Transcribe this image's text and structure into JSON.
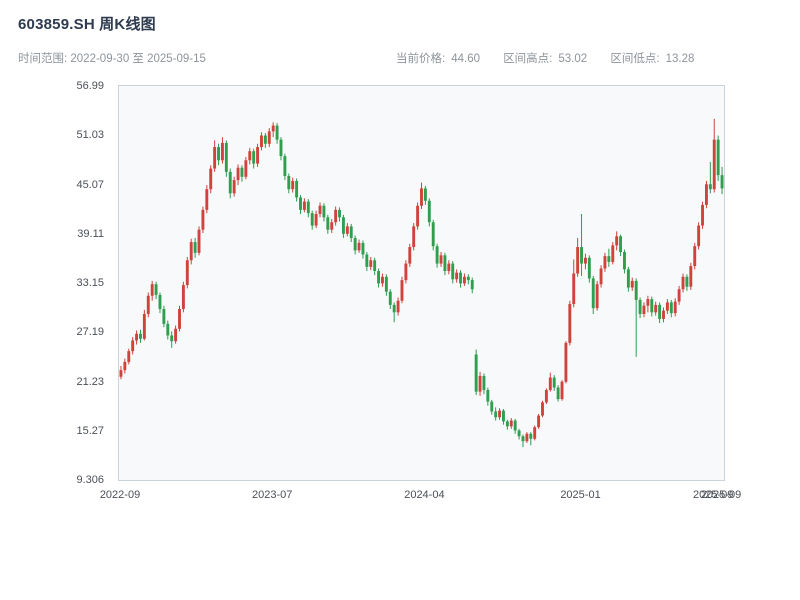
{
  "header": {
    "title": "603859.SH 周K线图",
    "time_range": "时间范围: 2022-09-30 至 2025-09-15",
    "info": {
      "price_label": "当前价格:",
      "price_value": "44.60",
      "high_label": "区间高点:",
      "high_value": "53.02",
      "low_label": "区间低点:",
      "low_value": "13.28"
    }
  },
  "chart_data": {
    "type": "candlestick",
    "symbol": "603859.SH",
    "period": "weekly",
    "title": "603859.SH 周K线图",
    "date_start": "2022-09-30",
    "date_end": "2025-09-15",
    "current_price": 44.6,
    "range_high": 53.02,
    "range_low": 13.28,
    "colors": {
      "up": "#d0433d",
      "down": "#2f9e4f"
    },
    "y_axis": {
      "min": 9.306,
      "max": 56.99,
      "tick_labels": [
        "56.99",
        "51.03",
        "45.07",
        "39.11",
        "33.15",
        "27.19",
        "21.23",
        "15.27",
        "9.306"
      ]
    },
    "x_axis": {
      "ticks": [
        {
          "label": "2022-09",
          "index": 0
        },
        {
          "label": "2023-07",
          "index": 39
        },
        {
          "label": "2024-04",
          "index": 78
        },
        {
          "label": "2025-01",
          "index": 118
        },
        {
          "label": "2025-09",
          "index": 152
        },
        {
          "label": "2025-09",
          "index": 154
        }
      ]
    },
    "candles": [
      [
        21.8,
        23.1,
        21.5,
        22.6
      ],
      [
        22.6,
        24.0,
        22.2,
        23.6
      ],
      [
        23.6,
        25.2,
        23.3,
        24.9
      ],
      [
        24.9,
        26.6,
        24.5,
        26.2
      ],
      [
        26.2,
        27.4,
        25.7,
        27.0
      ],
      [
        27.0,
        27.5,
        25.9,
        26.4
      ],
      [
        26.4,
        29.9,
        26.2,
        29.4
      ],
      [
        29.4,
        32.0,
        29.0,
        31.6
      ],
      [
        31.6,
        33.4,
        31.0,
        33.0
      ],
      [
        33.0,
        33.3,
        31.2,
        31.7
      ],
      [
        31.7,
        32.0,
        29.5,
        30.0
      ],
      [
        30.0,
        30.4,
        27.8,
        28.2
      ],
      [
        28.2,
        28.6,
        26.3,
        26.8
      ],
      [
        26.8,
        27.3,
        25.3,
        26.1
      ],
      [
        26.1,
        28.0,
        25.8,
        27.6
      ],
      [
        27.6,
        30.4,
        27.3,
        30.0
      ],
      [
        30.0,
        33.3,
        29.6,
        32.9
      ],
      [
        32.9,
        36.3,
        32.5,
        35.9
      ],
      [
        35.9,
        38.5,
        35.4,
        38.1
      ],
      [
        38.1,
        38.6,
        36.2,
        36.8
      ],
      [
        36.8,
        40.0,
        36.5,
        39.6
      ],
      [
        39.6,
        42.4,
        39.2,
        42.0
      ],
      [
        42.0,
        45.0,
        41.6,
        44.5
      ],
      [
        44.5,
        47.4,
        44.0,
        47.0
      ],
      [
        47.0,
        50.4,
        46.6,
        49.6
      ],
      [
        49.6,
        50.0,
        47.4,
        48.0
      ],
      [
        48.0,
        50.8,
        47.6,
        50.1
      ],
      [
        50.1,
        50.4,
        46.0,
        46.6
      ],
      [
        46.6,
        47.0,
        43.4,
        44.0
      ],
      [
        44.0,
        46.0,
        43.6,
        45.6
      ],
      [
        45.6,
        47.5,
        45.0,
        47.1
      ],
      [
        47.1,
        47.4,
        45.4,
        46.0
      ],
      [
        46.0,
        48.4,
        45.7,
        48.0
      ],
      [
        48.0,
        49.5,
        47.5,
        49.1
      ],
      [
        49.1,
        49.4,
        47.0,
        47.6
      ],
      [
        47.6,
        50.0,
        47.2,
        49.6
      ],
      [
        49.6,
        51.4,
        49.2,
        51.0
      ],
      [
        51.0,
        51.3,
        49.5,
        50.0
      ],
      [
        50.0,
        51.9,
        49.6,
        51.5
      ],
      [
        51.5,
        52.6,
        50.8,
        52.2
      ],
      [
        52.2,
        52.5,
        50.0,
        50.5
      ],
      [
        50.5,
        50.8,
        48.0,
        48.5
      ],
      [
        48.5,
        48.8,
        45.6,
        46.1
      ],
      [
        46.1,
        46.4,
        44.0,
        44.5
      ],
      [
        44.5,
        45.9,
        44.1,
        45.5
      ],
      [
        45.5,
        45.8,
        43.0,
        43.5
      ],
      [
        43.5,
        43.8,
        41.5,
        42.0
      ],
      [
        42.0,
        43.4,
        41.7,
        43.0
      ],
      [
        43.0,
        43.3,
        41.1,
        41.6
      ],
      [
        41.6,
        41.9,
        39.6,
        40.1
      ],
      [
        40.1,
        41.9,
        39.8,
        41.5
      ],
      [
        41.5,
        42.9,
        41.1,
        42.5
      ],
      [
        42.5,
        42.8,
        40.6,
        41.1
      ],
      [
        41.1,
        41.4,
        39.1,
        39.6
      ],
      [
        39.6,
        40.9,
        39.2,
        40.5
      ],
      [
        40.5,
        42.4,
        40.1,
        42.0
      ],
      [
        42.0,
        42.3,
        40.6,
        41.1
      ],
      [
        41.1,
        41.4,
        38.6,
        39.1
      ],
      [
        39.1,
        40.4,
        38.8,
        40.0
      ],
      [
        40.0,
        40.3,
        38.1,
        38.6
      ],
      [
        38.6,
        38.9,
        36.6,
        37.1
      ],
      [
        37.1,
        38.4,
        36.8,
        38.0
      ],
      [
        38.0,
        38.3,
        36.1,
        36.6
      ],
      [
        36.6,
        36.9,
        34.6,
        35.1
      ],
      [
        35.1,
        36.3,
        34.7,
        35.9
      ],
      [
        35.9,
        36.2,
        34.1,
        34.6
      ],
      [
        34.6,
        34.9,
        32.6,
        33.1
      ],
      [
        33.1,
        34.3,
        32.7,
        33.9
      ],
      [
        33.9,
        34.2,
        31.6,
        32.1
      ],
      [
        32.1,
        32.4,
        30.0,
        30.5
      ],
      [
        30.5,
        30.8,
        28.4,
        29.6
      ],
      [
        29.6,
        31.4,
        29.2,
        31.0
      ],
      [
        31.0,
        33.9,
        30.7,
        33.5
      ],
      [
        33.5,
        35.9,
        33.1,
        35.5
      ],
      [
        35.5,
        37.9,
        35.1,
        37.5
      ],
      [
        37.5,
        40.4,
        37.1,
        40.0
      ],
      [
        40.0,
        42.9,
        39.6,
        42.5
      ],
      [
        42.5,
        45.3,
        42.1,
        44.6
      ],
      [
        44.6,
        44.9,
        42.6,
        43.1
      ],
      [
        43.1,
        43.4,
        40.0,
        40.5
      ],
      [
        40.5,
        40.8,
        37.1,
        37.6
      ],
      [
        37.6,
        37.9,
        35.0,
        35.5
      ],
      [
        35.5,
        36.9,
        35.1,
        36.5
      ],
      [
        36.5,
        36.8,
        34.1,
        34.6
      ],
      [
        34.6,
        35.9,
        34.2,
        35.5
      ],
      [
        35.5,
        35.8,
        33.1,
        33.6
      ],
      [
        33.6,
        34.8,
        33.2,
        34.4
      ],
      [
        34.4,
        34.7,
        32.6,
        33.1
      ],
      [
        33.1,
        34.3,
        32.8,
        33.9
      ],
      [
        33.9,
        34.2,
        33.0,
        33.5
      ],
      [
        33.5,
        33.8,
        31.9,
        32.4
      ],
      [
        24.5,
        25.1,
        19.6,
        20.0
      ],
      [
        20.0,
        22.4,
        19.5,
        21.9
      ],
      [
        21.9,
        22.2,
        19.7,
        20.2
      ],
      [
        20.2,
        20.5,
        18.3,
        18.8
      ],
      [
        18.8,
        19.0,
        17.2,
        17.6
      ],
      [
        17.6,
        18.1,
        16.5,
        16.9
      ],
      [
        16.9,
        18.0,
        16.6,
        17.7
      ],
      [
        17.7,
        17.9,
        16.0,
        16.4
      ],
      [
        16.4,
        16.6,
        15.4,
        15.8
      ],
      [
        15.8,
        16.8,
        15.5,
        16.5
      ],
      [
        16.5,
        16.7,
        14.9,
        15.3
      ],
      [
        15.3,
        15.5,
        14.2,
        14.6
      ],
      [
        14.6,
        14.8,
        13.28,
        14.0
      ],
      [
        14.0,
        15.1,
        13.8,
        14.9
      ],
      [
        14.9,
        15.1,
        13.5,
        14.3
      ],
      [
        14.3,
        15.9,
        14.1,
        15.7
      ],
      [
        15.7,
        17.3,
        15.5,
        17.1
      ],
      [
        17.1,
        18.9,
        16.9,
        18.7
      ],
      [
        18.7,
        20.4,
        18.5,
        20.2
      ],
      [
        20.2,
        22.3,
        20.0,
        21.7
      ],
      [
        21.7,
        22.0,
        20.1,
        20.5
      ],
      [
        20.5,
        20.8,
        18.8,
        19.1
      ],
      [
        19.1,
        21.4,
        18.9,
        21.2
      ],
      [
        21.2,
        26.1,
        21.0,
        25.9
      ],
      [
        25.9,
        31.0,
        25.6,
        30.6
      ],
      [
        30.6,
        36.0,
        30.2,
        34.3
      ],
      [
        34.3,
        38.6,
        33.9,
        37.5
      ],
      [
        37.5,
        41.5,
        34.0,
        35.5
      ],
      [
        35.5,
        36.7,
        34.8,
        36.2
      ],
      [
        36.2,
        36.5,
        33.2,
        33.7
      ],
      [
        33.7,
        34.0,
        29.4,
        30.1
      ],
      [
        30.1,
        33.4,
        29.8,
        33.0
      ],
      [
        33.0,
        35.3,
        32.6,
        34.9
      ],
      [
        34.9,
        36.8,
        34.5,
        36.4
      ],
      [
        36.4,
        37.3,
        35.1,
        35.7
      ],
      [
        35.7,
        38.1,
        35.4,
        37.7
      ],
      [
        37.7,
        39.4,
        37.1,
        38.8
      ],
      [
        38.8,
        39.0,
        36.4,
        36.9
      ],
      [
        36.9,
        37.2,
        34.3,
        34.8
      ],
      [
        34.8,
        35.1,
        32.1,
        32.6
      ],
      [
        32.6,
        33.8,
        32.2,
        33.4
      ],
      [
        33.4,
        33.7,
        24.2,
        31.1
      ],
      [
        31.1,
        31.4,
        28.9,
        29.4
      ],
      [
        29.4,
        30.8,
        29.0,
        30.4
      ],
      [
        30.4,
        31.6,
        29.6,
        31.2
      ],
      [
        31.2,
        31.5,
        29.1,
        29.6
      ],
      [
        29.6,
        30.9,
        29.2,
        30.5
      ],
      [
        30.5,
        30.8,
        28.3,
        28.8
      ],
      [
        28.8,
        30.2,
        28.4,
        29.8
      ],
      [
        29.8,
        31.2,
        29.4,
        30.8
      ],
      [
        30.8,
        31.1,
        29.0,
        29.5
      ],
      [
        29.5,
        31.3,
        29.1,
        30.9
      ],
      [
        30.9,
        32.8,
        30.5,
        32.4
      ],
      [
        32.4,
        34.3,
        32.0,
        33.9
      ],
      [
        33.9,
        34.2,
        32.2,
        32.7
      ],
      [
        32.7,
        35.6,
        32.3,
        35.2
      ],
      [
        35.2,
        38.0,
        34.8,
        37.6
      ],
      [
        37.6,
        40.5,
        37.2,
        40.1
      ],
      [
        40.1,
        43.0,
        39.7,
        42.6
      ],
      [
        42.6,
        45.5,
        42.2,
        45.1
      ],
      [
        45.1,
        47.8,
        44.0,
        44.5
      ],
      [
        44.5,
        53.02,
        44.1,
        50.5
      ],
      [
        50.5,
        51.0,
        45.5,
        46.2
      ],
      [
        46.2,
        47.2,
        43.9,
        44.6
      ]
    ]
  }
}
